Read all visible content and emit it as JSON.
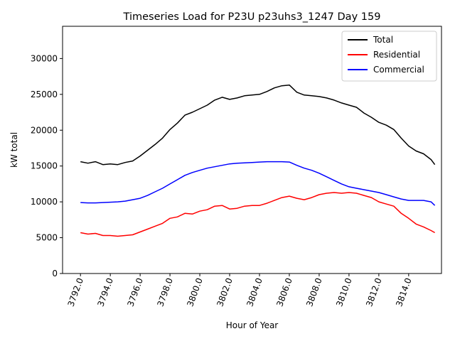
{
  "chart_data": {
    "type": "line",
    "title": "Timeseries Load for P23U p23uhs3_1247  Day 159",
    "xlabel": "Hour of Year",
    "ylabel": "kW total",
    "xlim": [
      3790.8,
      3816.2
    ],
    "ylim": [
      0,
      34500
    ],
    "xticks": [
      3792,
      3794,
      3796,
      3798,
      3800,
      3802,
      3804,
      3806,
      3808,
      3810,
      3812,
      3814
    ],
    "xtick_labels": [
      "3792.0",
      "3794.0",
      "3796.0",
      "3798.0",
      "3800.0",
      "3802.0",
      "3804.0",
      "3806.0",
      "3808.0",
      "3810.0",
      "3812.0",
      "3814.0"
    ],
    "yticks": [
      0,
      5000,
      10000,
      15000,
      20000,
      25000,
      30000
    ],
    "ytick_labels": [
      "0",
      "5000",
      "10000",
      "15000",
      "20000",
      "25000",
      "30000"
    ],
    "legend_position": "upper-right",
    "x": [
      3792.0,
      3792.5,
      3793.0,
      3793.5,
      3794.0,
      3794.5,
      3795.0,
      3795.5,
      3796.0,
      3796.5,
      3797.0,
      3797.5,
      3798.0,
      3798.5,
      3799.0,
      3799.5,
      3800.0,
      3800.5,
      3801.0,
      3801.5,
      3802.0,
      3802.5,
      3803.0,
      3803.5,
      3804.0,
      3804.5,
      3805.0,
      3805.5,
      3806.0,
      3806.5,
      3807.0,
      3807.5,
      3808.0,
      3808.5,
      3809.0,
      3809.5,
      3810.0,
      3810.5,
      3811.0,
      3811.5,
      3812.0,
      3812.5,
      3813.0,
      3813.5,
      3814.0,
      3814.5,
      3815.0,
      3815.5,
      3815.75
    ],
    "series": [
      {
        "name": "Total",
        "color": "#000000",
        "values": [
          15600,
          15400,
          15600,
          15200,
          15300,
          15200,
          15500,
          15700,
          16400,
          17200,
          18000,
          18900,
          20100,
          21000,
          22100,
          22500,
          23000,
          23500,
          24200,
          24600,
          24300,
          24500,
          24800,
          24900,
          25000,
          25400,
          25900,
          26200,
          26300,
          25300,
          24900,
          24800,
          24700,
          24500,
          24200,
          23800,
          23500,
          23200,
          22400,
          21800,
          21100,
          20700,
          20100,
          18900,
          17800,
          17100,
          16700,
          15900,
          15200
        ]
      },
      {
        "name": "Residential",
        "color": "#ff0000",
        "values": [
          5700,
          5500,
          5600,
          5300,
          5300,
          5200,
          5300,
          5400,
          5800,
          6200,
          6600,
          7000,
          7700,
          7900,
          8400,
          8300,
          8700,
          8900,
          9400,
          9500,
          9000,
          9100,
          9400,
          9500,
          9500,
          9800,
          10200,
          10600,
          10800,
          10500,
          10300,
          10600,
          11000,
          11200,
          11300,
          11200,
          11300,
          11200,
          10900,
          10600,
          10000,
          9700,
          9400,
          8400,
          7700,
          6900,
          6500,
          6000,
          5700
        ]
      },
      {
        "name": "Commercial",
        "color": "#0000ff",
        "values": [
          9900,
          9850,
          9850,
          9900,
          9950,
          10000,
          10100,
          10300,
          10500,
          10900,
          11400,
          11900,
          12500,
          13100,
          13700,
          14100,
          14400,
          14700,
          14900,
          15100,
          15300,
          15400,
          15450,
          15500,
          15550,
          15600,
          15600,
          15600,
          15550,
          15100,
          14700,
          14400,
          14000,
          13500,
          13000,
          12500,
          12100,
          11900,
          11700,
          11500,
          11300,
          11000,
          10700,
          10400,
          10200,
          10200,
          10200,
          10000,
          9500
        ]
      }
    ]
  }
}
